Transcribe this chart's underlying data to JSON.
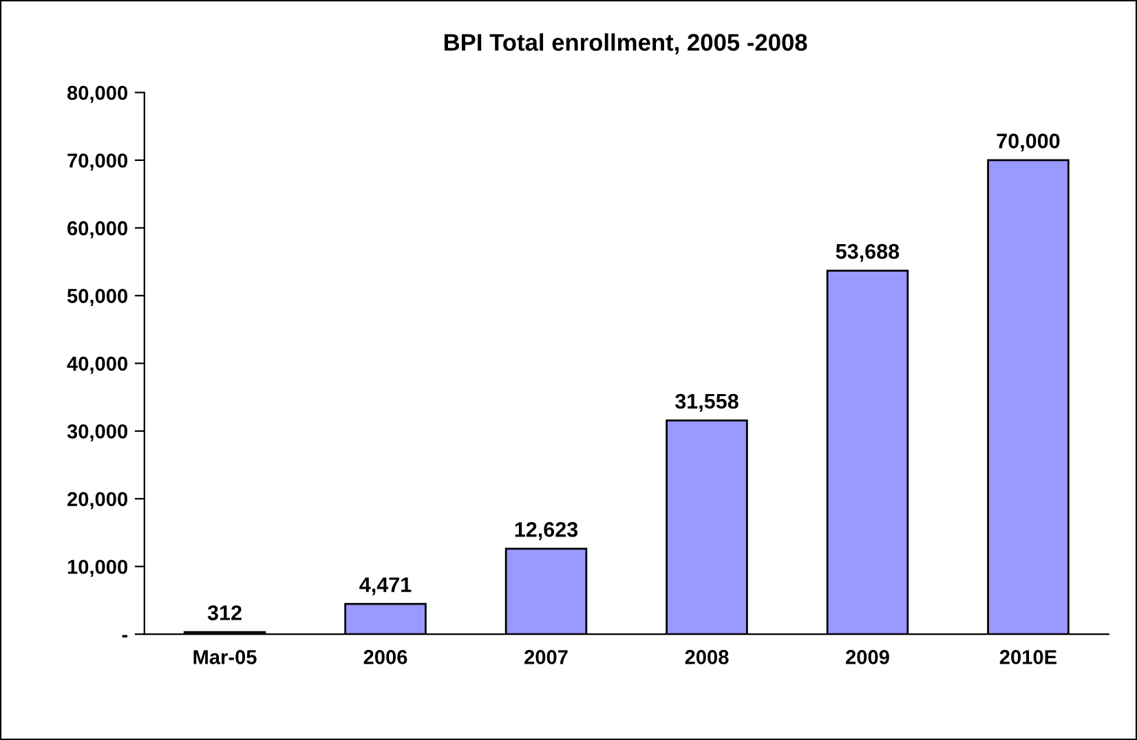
{
  "chart_data": {
    "type": "bar",
    "title": "BPI Total enrollment, 2005 -2008",
    "categories": [
      "Mar-05",
      "2006",
      "2007",
      "2008",
      "2009",
      "2010E"
    ],
    "values": [
      312,
      4471,
      12623,
      31558,
      53688,
      70000
    ],
    "value_labels": [
      "312",
      "4,471",
      "12,623",
      "31,558",
      "53,688",
      "70,000"
    ],
    "color": "#9999ff",
    "ylim": [
      0,
      80000
    ],
    "yticks": [
      {
        "value": 0,
        "label": "-"
      },
      {
        "value": 10000,
        "label": "10,000"
      },
      {
        "value": 20000,
        "label": "20,000"
      },
      {
        "value": 30000,
        "label": "30,000"
      },
      {
        "value": 40000,
        "label": "40,000"
      },
      {
        "value": 50000,
        "label": "50,000"
      },
      {
        "value": 60000,
        "label": "60,000"
      },
      {
        "value": 70000,
        "label": "70,000"
      },
      {
        "value": 80000,
        "label": "80,000"
      }
    ],
    "grid": false,
    "legend": false
  }
}
